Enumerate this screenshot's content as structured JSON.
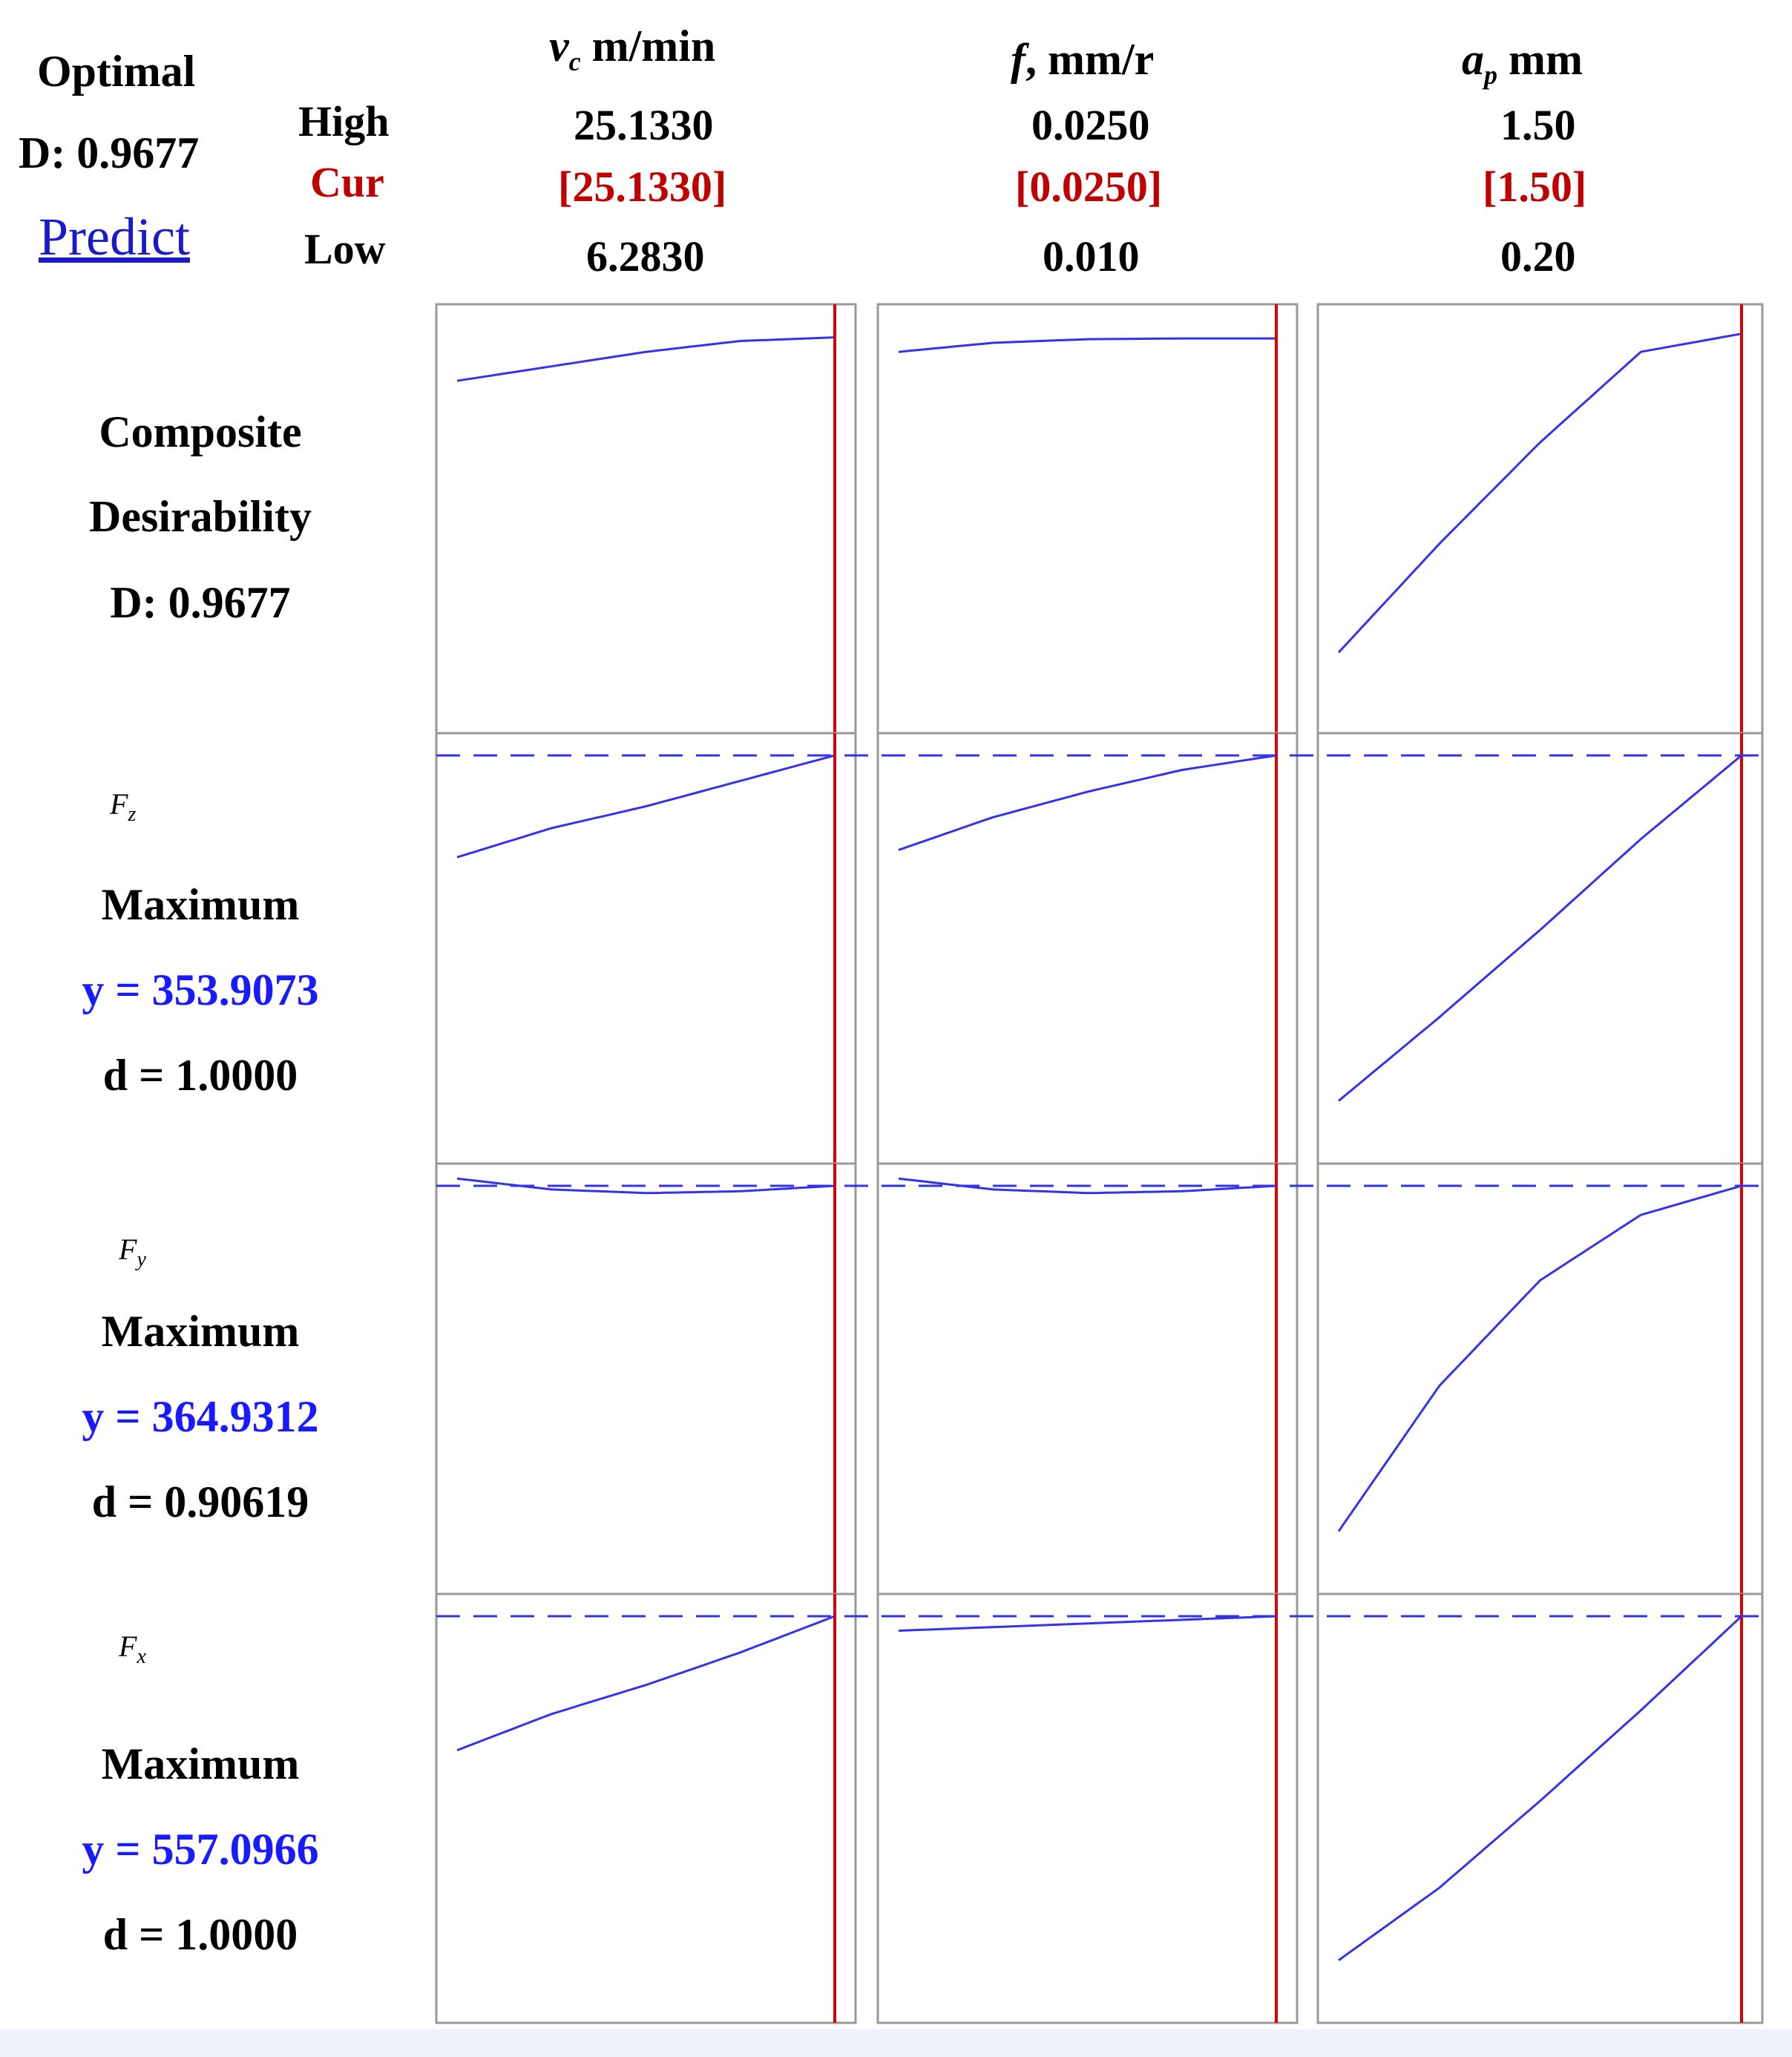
{
  "summary": {
    "optimal_label": "Optimal",
    "d_text": "D: 0.9677",
    "predict_label": "Predict"
  },
  "levels": {
    "high": "High",
    "cur": "Cur",
    "low": "Low"
  },
  "factors": [
    {
      "name": "v",
      "sub": "c",
      "unit": " m/min",
      "high": "25.1330",
      "cur": "[25.1330]",
      "low": "6.2830"
    },
    {
      "name": "f",
      "sub": "",
      "unit": ", mm/r",
      "high": "0.0250",
      "cur": "[0.0250]",
      "low": "0.010"
    },
    {
      "name": "a",
      "sub": "p",
      "unit": " mm",
      "high": "1.50",
      "cur": "[1.50]",
      "low": "0.20"
    }
  ],
  "rows": [
    {
      "lines": [
        "Composite",
        "Desirability",
        "D: 0.9677"
      ]
    },
    {
      "response": "F",
      "sub": "z",
      "goal": "Maximum",
      "y": "y = 353.9073",
      "d": "d = 1.0000"
    },
    {
      "response": "F",
      "sub": "y",
      "goal": "Maximum",
      "y": "y = 364.9312",
      "d": "d = 0.90619"
    },
    {
      "response": "F",
      "sub": "x",
      "goal": "Maximum",
      "y": "y = 557.0966",
      "d": "d = 1.0000"
    }
  ],
  "colors": {
    "curve": "#3333ee",
    "current": "#dd0000",
    "frame": "#999999",
    "target": "#3333ee"
  },
  "chart_data": {
    "type": "line",
    "note_units": "curve values normalized 0-1 within each panel (response scale not printed)",
    "x_fraction_samples": [
      0,
      0.25,
      0.5,
      0.75,
      1.0
    ],
    "current_setting_fraction": [
      1.0,
      1.0,
      1.0
    ],
    "target_line_fraction": [
      null,
      1.0,
      1.0,
      1.0
    ],
    "panels": [
      [
        {
          "values": [
            0.85,
            0.89,
            0.93,
            0.96,
            0.97
          ]
        },
        {
          "values": [
            0.93,
            0.955,
            0.965,
            0.967,
            0.967
          ]
        },
        {
          "values": [
            0.1,
            0.4,
            0.68,
            0.93,
            0.98
          ]
        }
      ],
      [
        {
          "values": [
            0.72,
            0.8,
            0.86,
            0.93,
            1.0
          ]
        },
        {
          "values": [
            0.74,
            0.83,
            0.9,
            0.96,
            1.0
          ]
        },
        {
          "values": [
            0.05,
            0.28,
            0.52,
            0.77,
            1.0
          ]
        }
      ],
      [
        {
          "values": [
            1.02,
            0.99,
            0.98,
            0.985,
            1.0
          ]
        },
        {
          "values": [
            1.02,
            0.99,
            0.98,
            0.985,
            1.0
          ]
        },
        {
          "values": [
            0.05,
            0.45,
            0.74,
            0.92,
            1.0
          ]
        }
      ],
      [
        {
          "values": [
            0.63,
            0.73,
            0.81,
            0.9,
            1.0
          ]
        },
        {
          "values": [
            0.96,
            0.97,
            0.98,
            0.99,
            1.0
          ]
        },
        {
          "values": [
            0.05,
            0.25,
            0.49,
            0.74,
            1.0
          ]
        }
      ]
    ]
  }
}
